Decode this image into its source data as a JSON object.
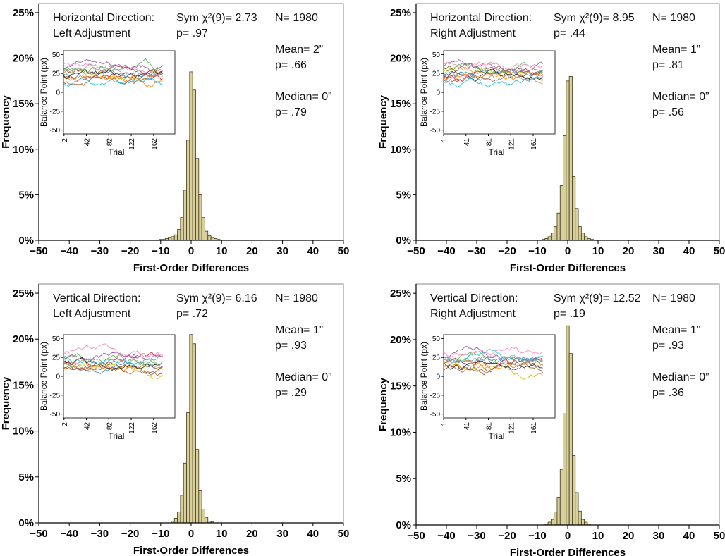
{
  "colors": {
    "bar_fill": "#d8cf9a",
    "bar_stroke": "#3f3a1c",
    "axis": "#000000",
    "frame": "#888888",
    "inset_lines": [
      "#e41a1c",
      "#377eb8",
      "#4daf4a",
      "#984ea3",
      "#ff7f00",
      "#c8b400",
      "#a65628",
      "#f781bf",
      "#222222",
      "#17becf",
      "#8c564b",
      "#999999"
    ]
  },
  "chart_data": [
    {
      "type": "bar",
      "title_line1": "Horizontal Direction:",
      "title_line2": "Left Adjustment",
      "stat": "Sym χ²(9)= 2.73",
      "stat_p": "p= .97",
      "n": "N= 1980",
      "mean": "Mean= 2”",
      "mean_p": "p= .66",
      "median": "Median= 0”",
      "median_p": "p= .79",
      "xlabel": "First-Order Differences",
      "ylabel": "Frequency",
      "xlim": [
        -50,
        50
      ],
      "ylim": [
        0,
        0.26
      ],
      "xticks": [
        -50,
        -40,
        -30,
        -20,
        -10,
        0,
        10,
        20,
        30,
        40,
        50
      ],
      "yticks": [
        0,
        0.05,
        0.1,
        0.15,
        0.2,
        0.25
      ],
      "ytick_labels": [
        "0%",
        "5%",
        "10%",
        "15%",
        "20%",
        "25%"
      ],
      "bin_width": 1,
      "bins": [
        {
          "x": -10,
          "value": 0.001
        },
        {
          "x": -9,
          "value": 0.001
        },
        {
          "x": -8,
          "value": 0.002
        },
        {
          "x": -7,
          "value": 0.003
        },
        {
          "x": -6,
          "value": 0.004
        },
        {
          "x": -5,
          "value": 0.006
        },
        {
          "x": -4,
          "value": 0.012
        },
        {
          "x": -3,
          "value": 0.025
        },
        {
          "x": -2,
          "value": 0.055
        },
        {
          "x": -1,
          "value": 0.11
        },
        {
          "x": 0,
          "value": 0.185
        },
        {
          "x": 1,
          "value": 0.165
        },
        {
          "x": 2,
          "value": 0.09
        },
        {
          "x": 3,
          "value": 0.05
        },
        {
          "x": 4,
          "value": 0.025
        },
        {
          "x": 5,
          "value": 0.01
        },
        {
          "x": 6,
          "value": 0.005
        },
        {
          "x": 7,
          "value": 0.003
        },
        {
          "x": 8,
          "value": 0.002
        },
        {
          "x": 9,
          "value": 0.001
        }
      ],
      "inset": {
        "xlabel": "Trial",
        "ylabel": "Balance Point (px)",
        "xticks": [
          "2",
          "42",
          "82",
          "122",
          "162"
        ],
        "xtick_values": [
          2,
          42,
          82,
          122,
          162
        ],
        "xlim": [
          1,
          200
        ],
        "yticks": [
          -50,
          -25,
          0,
          25,
          50
        ],
        "ylim": [
          -55,
          55
        ],
        "series_levels": [
          20,
          24,
          29,
          33,
          17,
          26,
          14,
          35,
          22,
          12,
          31,
          27
        ],
        "diverging": false
      }
    },
    {
      "type": "bar",
      "title_line1": "Horizontal Direction:",
      "title_line2": "Right Adjustment",
      "stat": "Sym χ²(9)= 8.95",
      "stat_p": "p= .44",
      "n": "N= 1980",
      "mean": "Mean= 1”",
      "mean_p": "p= .81",
      "median": "Median= 0”",
      "median_p": "p= .56",
      "xlabel": "First-Order Differences",
      "ylabel": "Frequency",
      "xlim": [
        -50,
        50
      ],
      "ylim": [
        0,
        0.26
      ],
      "xticks": [
        -50,
        -40,
        -30,
        -20,
        -10,
        0,
        10,
        20,
        30,
        40,
        50
      ],
      "yticks": [
        0,
        0.05,
        0.1,
        0.15,
        0.2,
        0.25
      ],
      "ytick_labels": [
        "0%",
        "5%",
        "10%",
        "15%",
        "20%",
        "25%"
      ],
      "bin_width": 1,
      "bins": [
        {
          "x": -8,
          "value": 0.001
        },
        {
          "x": -7,
          "value": 0.002
        },
        {
          "x": -6,
          "value": 0.004
        },
        {
          "x": -5,
          "value": 0.008
        },
        {
          "x": -4,
          "value": 0.015
        },
        {
          "x": -3,
          "value": 0.03
        },
        {
          "x": -2,
          "value": 0.06
        },
        {
          "x": -1,
          "value": 0.115
        },
        {
          "x": 0,
          "value": 0.175
        },
        {
          "x": 1,
          "value": 0.18
        },
        {
          "x": 2,
          "value": 0.07
        },
        {
          "x": 3,
          "value": 0.035
        },
        {
          "x": 4,
          "value": 0.015
        },
        {
          "x": 5,
          "value": 0.008
        },
        {
          "x": 6,
          "value": 0.004
        },
        {
          "x": 7,
          "value": 0.002
        },
        {
          "x": 8,
          "value": 0.001
        }
      ],
      "inset": {
        "xlabel": "Trial",
        "ylabel": "Balance Point (px)",
        "xticks": [
          "1",
          "41",
          "81",
          "121",
          "161"
        ],
        "xtick_values": [
          1,
          41,
          81,
          121,
          161
        ],
        "xlim": [
          1,
          200
        ],
        "yticks": [
          -50,
          -25,
          0,
          25,
          50
        ],
        "ylim": [
          -55,
          55
        ],
        "series_levels": [
          21,
          25,
          30,
          34,
          18,
          27,
          15,
          36,
          23,
          13,
          31,
          26
        ],
        "diverging": false
      }
    },
    {
      "type": "bar",
      "title_line1": "Vertical Direction:",
      "title_line2": "Left Adjustment",
      "stat": "Sym χ²(9)= 6.16",
      "stat_p": "p= .72",
      "n": "N= 1980",
      "mean": "Mean= 1”",
      "mean_p": "p= .93",
      "median": "Median= 0”",
      "median_p": "p= .29",
      "xlabel": "First-Order Differences",
      "ylabel": "Frequency",
      "xlim": [
        -50,
        50
      ],
      "ylim": [
        0,
        0.26
      ],
      "xticks": [
        -50,
        -40,
        -30,
        -20,
        -10,
        0,
        10,
        20,
        30,
        40,
        50
      ],
      "yticks": [
        0,
        0.05,
        0.1,
        0.15,
        0.2,
        0.25
      ],
      "ytick_labels": [
        "0%",
        "5%",
        "10%",
        "15%",
        "20%",
        "25%"
      ],
      "bin_width": 1,
      "bins": [
        {
          "x": -6,
          "value": 0.002
        },
        {
          "x": -5,
          "value": 0.005
        },
        {
          "x": -4,
          "value": 0.012
        },
        {
          "x": -3,
          "value": 0.03
        },
        {
          "x": -2,
          "value": 0.065
        },
        {
          "x": -1,
          "value": 0.12
        },
        {
          "x": 0,
          "value": 0.205
        },
        {
          "x": 1,
          "value": 0.195
        },
        {
          "x": 2,
          "value": 0.08
        },
        {
          "x": 3,
          "value": 0.035
        },
        {
          "x": 4,
          "value": 0.015
        },
        {
          "x": 5,
          "value": 0.006
        },
        {
          "x": 6,
          "value": 0.002
        },
        {
          "x": 7,
          "value": 0.001
        }
      ],
      "inset": {
        "xlabel": "Trial",
        "ylabel": "Balance Point (px)",
        "xticks": [
          "2",
          "42",
          "82",
          "122",
          "162"
        ],
        "xtick_values": [
          2,
          42,
          82,
          122,
          162
        ],
        "xlim": [
          1,
          200
        ],
        "yticks": [
          -50,
          -25,
          0,
          25,
          50
        ],
        "ylim": [
          -55,
          55
        ],
        "series_levels": [
          14,
          18,
          22,
          27,
          12,
          20,
          9,
          30,
          16,
          24,
          11,
          19
        ],
        "diverging": true
      }
    },
    {
      "type": "bar",
      "title_line1": "Vertical Direction:",
      "title_line2": "Right Adjustment",
      "stat": "Sym χ²(9)= 12.52",
      "stat_p": "p= .19",
      "n": "N= 1980",
      "mean": "Mean= 1”",
      "mean_p": "p= .93",
      "median": "Median= 0”",
      "median_p": "p= .36",
      "xlabel": "First-Order Differences",
      "ylabel": "Frequency",
      "xlim": [
        -50,
        50
      ],
      "ylim": [
        0,
        0.26
      ],
      "xticks": [
        -50,
        -40,
        -30,
        -20,
        -10,
        0,
        10,
        20,
        30,
        40,
        50
      ],
      "yticks": [
        0,
        0.05,
        0.1,
        0.15,
        0.2,
        0.25
      ],
      "ytick_labels": [
        "0%",
        "5%",
        "10%",
        "15%",
        "20%",
        "25%"
      ],
      "bin_width": 1,
      "bins": [
        {
          "x": -7,
          "value": 0.001
        },
        {
          "x": -6,
          "value": 0.003
        },
        {
          "x": -5,
          "value": 0.006
        },
        {
          "x": -4,
          "value": 0.014
        },
        {
          "x": -3,
          "value": 0.03
        },
        {
          "x": -2,
          "value": 0.06
        },
        {
          "x": -1,
          "value": 0.12
        },
        {
          "x": 0,
          "value": 0.215
        },
        {
          "x": 1,
          "value": 0.185
        },
        {
          "x": 2,
          "value": 0.075
        },
        {
          "x": 3,
          "value": 0.035
        },
        {
          "x": 4,
          "value": 0.015
        },
        {
          "x": 5,
          "value": 0.006
        },
        {
          "x": 6,
          "value": 0.003
        },
        {
          "x": 7,
          "value": 0.001
        }
      ],
      "inset": {
        "xlabel": "Trial",
        "ylabel": "Balance Point (px)",
        "xticks": [
          "1",
          "41",
          "81",
          "121",
          "161"
        ],
        "xtick_values": [
          1,
          41,
          81,
          121,
          161
        ],
        "xlim": [
          1,
          200
        ],
        "yticks": [
          -50,
          -25,
          0,
          25,
          50
        ],
        "ylim": [
          -55,
          55
        ],
        "series_levels": [
          15,
          19,
          23,
          28,
          13,
          21,
          10,
          31,
          17,
          25,
          12,
          20
        ],
        "diverging": true
      }
    }
  ]
}
